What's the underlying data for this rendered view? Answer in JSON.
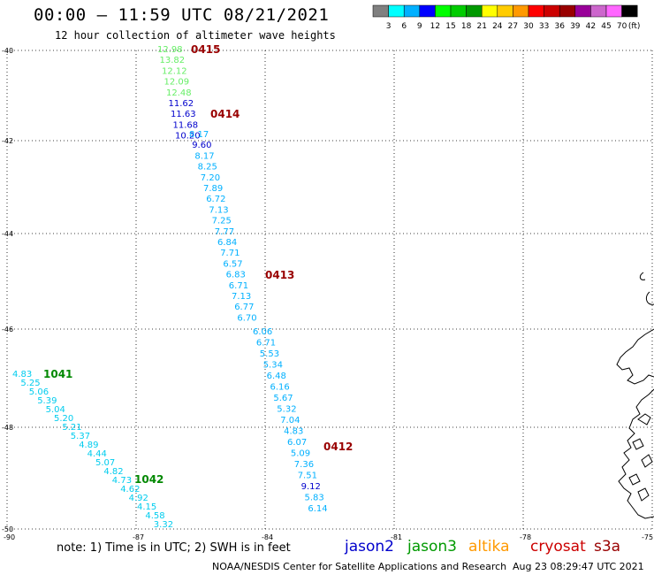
{
  "header": {
    "title": "00:00 — 11:59 UTC 08/21/2021",
    "subtitle": "12 hour collection of altimeter wave heights"
  },
  "colorbar": {
    "colors": [
      "#808080",
      "#00ffff",
      "#00b0ff",
      "#0000ff",
      "#00ff00",
      "#00cc00",
      "#009900",
      "#ffff00",
      "#ffcc00",
      "#ff9900",
      "#ff0000",
      "#cc0000",
      "#990000",
      "#990099",
      "#cc66cc",
      "#ff66ff",
      "#000000"
    ],
    "labels": [
      "3",
      "6",
      "9",
      "12",
      "15",
      "18",
      "21",
      "24",
      "27",
      "30",
      "33",
      "36",
      "39",
      "42",
      "45",
      "70",
      "(ft)"
    ]
  },
  "axes": {
    "lat_labels": [
      "-40",
      "-42",
      "-44",
      "-46",
      "-48",
      "-50"
    ],
    "lon_labels": [
      "-90",
      "-87",
      "-84",
      "-81",
      "-78",
      "-75"
    ]
  },
  "tracks": [
    {
      "id_label": "0415",
      "id_color": "#990000",
      "points": [
        {
          "v": "12.98",
          "c": "#66ee66"
        },
        {
          "v": "13.82",
          "c": "#66ee66"
        },
        {
          "v": "12.12",
          "c": "#66ee66"
        },
        {
          "v": "12.09",
          "c": "#66ee66"
        },
        {
          "v": "12.48",
          "c": "#66ee66"
        },
        {
          "v": "11.62",
          "c": "#0000cc"
        },
        {
          "v": "11.63",
          "c": "#0000cc"
        },
        {
          "v": "11.68",
          "c": "#0000cc"
        },
        {
          "v": "10.20",
          "c": "#0000cc"
        }
      ]
    },
    {
      "id_label": "0414",
      "id_color": "#990000",
      "points": [
        {
          "v": "8.17",
          "c": "#00b0ff"
        },
        {
          "v": "9.60",
          "c": "#0000cc"
        },
        {
          "v": "8.17",
          "c": "#00b0ff"
        },
        {
          "v": "8.25",
          "c": "#00b0ff"
        },
        {
          "v": "7.20",
          "c": "#00b0ff"
        },
        {
          "v": "7.89",
          "c": "#00b0ff"
        },
        {
          "v": "6.72",
          "c": "#00b0ff"
        },
        {
          "v": "7.13",
          "c": "#00b0ff"
        },
        {
          "v": "7.25",
          "c": "#00b0ff"
        },
        {
          "v": "7.77",
          "c": "#00b0ff"
        },
        {
          "v": "6.84",
          "c": "#00b0ff"
        },
        {
          "v": "7.71",
          "c": "#00b0ff"
        },
        {
          "v": "6.57",
          "c": "#00b0ff"
        },
        {
          "v": "6.83",
          "c": "#00b0ff"
        },
        {
          "v": "6.71",
          "c": "#00b0ff"
        },
        {
          "v": "7.13",
          "c": "#00b0ff"
        },
        {
          "v": "6.77",
          "c": "#00b0ff"
        },
        {
          "v": "6.70",
          "c": "#00b0ff"
        }
      ]
    },
    {
      "id_label": "0413",
      "id_color": "#990000",
      "points": [
        {
          "v": "6.06",
          "c": "#00b0ff"
        },
        {
          "v": "6.71",
          "c": "#00b0ff"
        },
        {
          "v": "5.53",
          "c": "#00b0ff"
        },
        {
          "v": "5.34",
          "c": "#00b0ff"
        },
        {
          "v": "6.48",
          "c": "#00b0ff"
        },
        {
          "v": "6.16",
          "c": "#00b0ff"
        },
        {
          "v": "5.67",
          "c": "#00b0ff"
        },
        {
          "v": "5.32",
          "c": "#00b0ff"
        },
        {
          "v": "7.04",
          "c": "#00b0ff"
        },
        {
          "v": "4.83",
          "c": "#00b0ff"
        },
        {
          "v": "6.07",
          "c": "#00b0ff"
        },
        {
          "v": "5.09",
          "c": "#00b0ff"
        },
        {
          "v": "7.36",
          "c": "#00b0ff"
        },
        {
          "v": "7.51",
          "c": "#00b0ff"
        },
        {
          "v": "9.12",
          "c": "#0000cc"
        },
        {
          "v": "5.83",
          "c": "#00b0ff"
        },
        {
          "v": "6.14",
          "c": "#00b0ff"
        }
      ]
    },
    {
      "id_label": "0412",
      "id_color": "#990000"
    },
    {
      "id_label": "1041",
      "id_color": "#008800",
      "points": [
        {
          "v": "4.83",
          "c": "#00ccee"
        },
        {
          "v": "5.25",
          "c": "#00ccee"
        },
        {
          "v": "5.06",
          "c": "#00ccee"
        },
        {
          "v": "5.39",
          "c": "#00ccee"
        },
        {
          "v": "5.04",
          "c": "#00ccee"
        },
        {
          "v": "5.20",
          "c": "#00ccee"
        },
        {
          "v": "5.21",
          "c": "#00ccee"
        },
        {
          "v": "5.37",
          "c": "#00ccee"
        },
        {
          "v": "4.89",
          "c": "#00ccee"
        },
        {
          "v": "4.44",
          "c": "#00ccee"
        },
        {
          "v": "5.07",
          "c": "#00ccee"
        },
        {
          "v": "4.82",
          "c": "#00ccee"
        },
        {
          "v": "4.73",
          "c": "#00ccee"
        },
        {
          "v": "4.62",
          "c": "#00ccee"
        },
        {
          "v": "4.92",
          "c": "#00ccee"
        },
        {
          "v": "4.15",
          "c": "#00ccee"
        },
        {
          "v": "4.58",
          "c": "#00ccee"
        },
        {
          "v": "3.32",
          "c": "#00ccee"
        }
      ]
    },
    {
      "id_label": "1042",
      "id_color": "#008800"
    }
  ],
  "footer": {
    "note": "note:  1) Time is in UTC;  2) SWH is in feet",
    "satellites": [
      {
        "name": "jason2",
        "color": "#0000cc"
      },
      {
        "name": "jason3",
        "color": "#009900"
      },
      {
        "name": "altika",
        "color": "#ff9900"
      },
      {
        "name": "cryosat",
        "color": "#cc0000"
      },
      {
        "name": "s3a",
        "color": "#990000"
      }
    ],
    "credit": "NOAA/NESDIS Center for Satellite Applications and Research",
    "timestamp": "Aug 23 08:29:47 UTC 2021"
  }
}
